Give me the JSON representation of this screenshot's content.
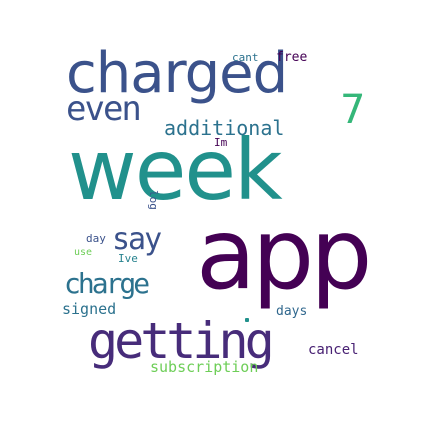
{
  "words": {
    "week": {
      "text": "week",
      "color": "#21918c"
    },
    "app": {
      "text": "app",
      "color": "#440154"
    },
    "charged": {
      "text": "charged",
      "color": "#3b528b"
    },
    "getting": {
      "text": "getting",
      "color": "#472c7a"
    },
    "even": {
      "text": "even",
      "color": "#3b528b"
    },
    "additional": {
      "text": "additional",
      "color": "#2c728e"
    },
    "seven": {
      "text": "7",
      "color": "#35b779"
    },
    "say": {
      "text": "say",
      "color": "#3b528b"
    },
    "charge": {
      "text": "charge",
      "color": "#2c728e"
    },
    "subscription": {
      "text": "subscription",
      "color": "#6ece58"
    },
    "signed": {
      "text": "signed",
      "color": "#2c728e"
    },
    "cancel": {
      "text": "cancel",
      "color": "#482173"
    },
    "days": {
      "text": "days",
      "color": "#31688e"
    },
    "free": {
      "text": "free",
      "color": "#440154"
    },
    "cant": {
      "text": "cant",
      "color": "#2c728e"
    },
    "Im": {
      "text": "Im",
      "color": "#440154"
    },
    "log": {
      "text": "log",
      "color": "#3b528b"
    },
    "day": {
      "text": "day",
      "color": "#3b528b"
    },
    "use": {
      "text": "use",
      "color": "#6ece58"
    },
    "Ive": {
      "text": "Ive",
      "color": "#26828e"
    }
  }
}
